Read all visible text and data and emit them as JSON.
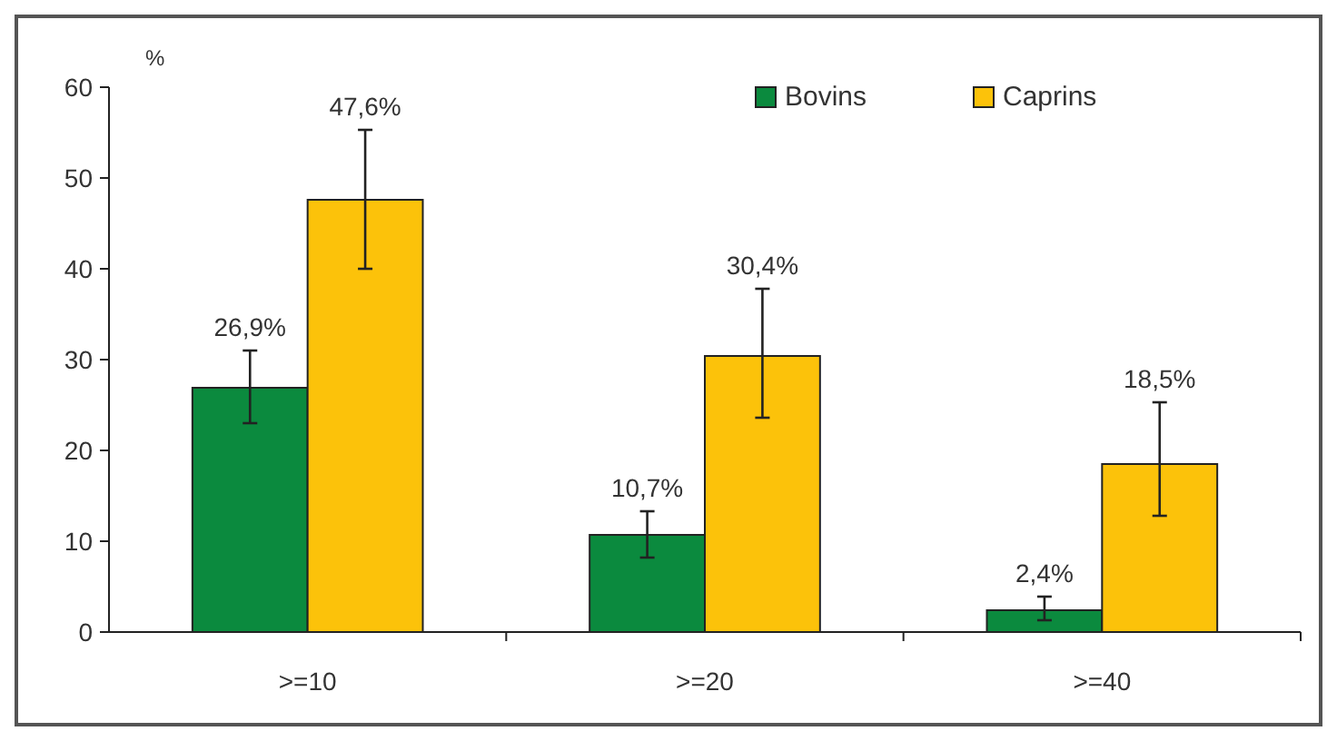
{
  "chart_data": {
    "type": "bar",
    "ylabel": "%",
    "categories": [
      ">=10",
      ">=20",
      ">=40"
    ],
    "series": [
      {
        "name": "Bovins",
        "color": "#0b8a3e",
        "values": [
          26.9,
          10.7,
          2.4
        ],
        "errors": [
          [
            23,
            31
          ],
          [
            8.2,
            13.3
          ],
          [
            1.3,
            3.9
          ]
        ],
        "value_labels": [
          "26,9%",
          "10,7%",
          "2,4%"
        ]
      },
      {
        "name": "Caprins",
        "color": "#fcc20a",
        "values": [
          47.6,
          30.4,
          18.5
        ],
        "errors": [
          [
            40,
            55.3
          ],
          [
            23.6,
            37.8
          ],
          [
            12.8,
            25.3
          ]
        ],
        "value_labels": [
          "47,6%",
          "30,4%",
          "18,5%"
        ]
      }
    ],
    "ylim": [
      0,
      60
    ],
    "yticks": [
      0,
      10,
      20,
      30,
      40,
      50,
      60
    ],
    "grid": false,
    "legend": "top right"
  }
}
